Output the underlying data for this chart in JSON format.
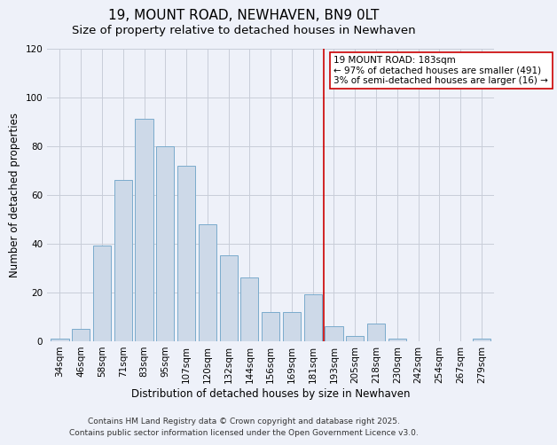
{
  "title": "19, MOUNT ROAD, NEWHAVEN, BN9 0LT",
  "subtitle": "Size of property relative to detached houses in Newhaven",
  "xlabel": "Distribution of detached houses by size in Newhaven",
  "ylabel": "Number of detached properties",
  "bar_labels": [
    "34sqm",
    "46sqm",
    "58sqm",
    "71sqm",
    "83sqm",
    "95sqm",
    "107sqm",
    "120sqm",
    "132sqm",
    "144sqm",
    "156sqm",
    "169sqm",
    "181sqm",
    "193sqm",
    "205sqm",
    "218sqm",
    "230sqm",
    "242sqm",
    "254sqm",
    "267sqm",
    "279sqm"
  ],
  "bar_values": [
    1,
    5,
    39,
    66,
    91,
    80,
    72,
    48,
    35,
    26,
    12,
    12,
    19,
    6,
    2,
    7,
    1,
    0,
    0,
    0,
    1
  ],
  "bar_color": "#cdd9e8",
  "bar_edge_color": "#7aabcc",
  "vline_x": 12.5,
  "vline_color": "#cc0000",
  "annotation_title": "19 MOUNT ROAD: 183sqm",
  "annotation_line1": "← 97% of detached houses are smaller (491)",
  "annotation_line2": "3% of semi-detached houses are larger (16) →",
  "annotation_box_facecolor": "#ffffff",
  "annotation_box_edgecolor": "#cc0000",
  "ylim": [
    0,
    120
  ],
  "yticks": [
    0,
    20,
    40,
    60,
    80,
    100,
    120
  ],
  "footer1": "Contains HM Land Registry data © Crown copyright and database right 2025.",
  "footer2": "Contains public sector information licensed under the Open Government Licence v3.0.",
  "background_color": "#eef1f9",
  "grid_color": "#c8cdd8",
  "title_fontsize": 11,
  "subtitle_fontsize": 9.5,
  "axis_label_fontsize": 8.5,
  "tick_fontsize": 7.5,
  "annotation_fontsize": 7.5,
  "footer_fontsize": 6.5
}
